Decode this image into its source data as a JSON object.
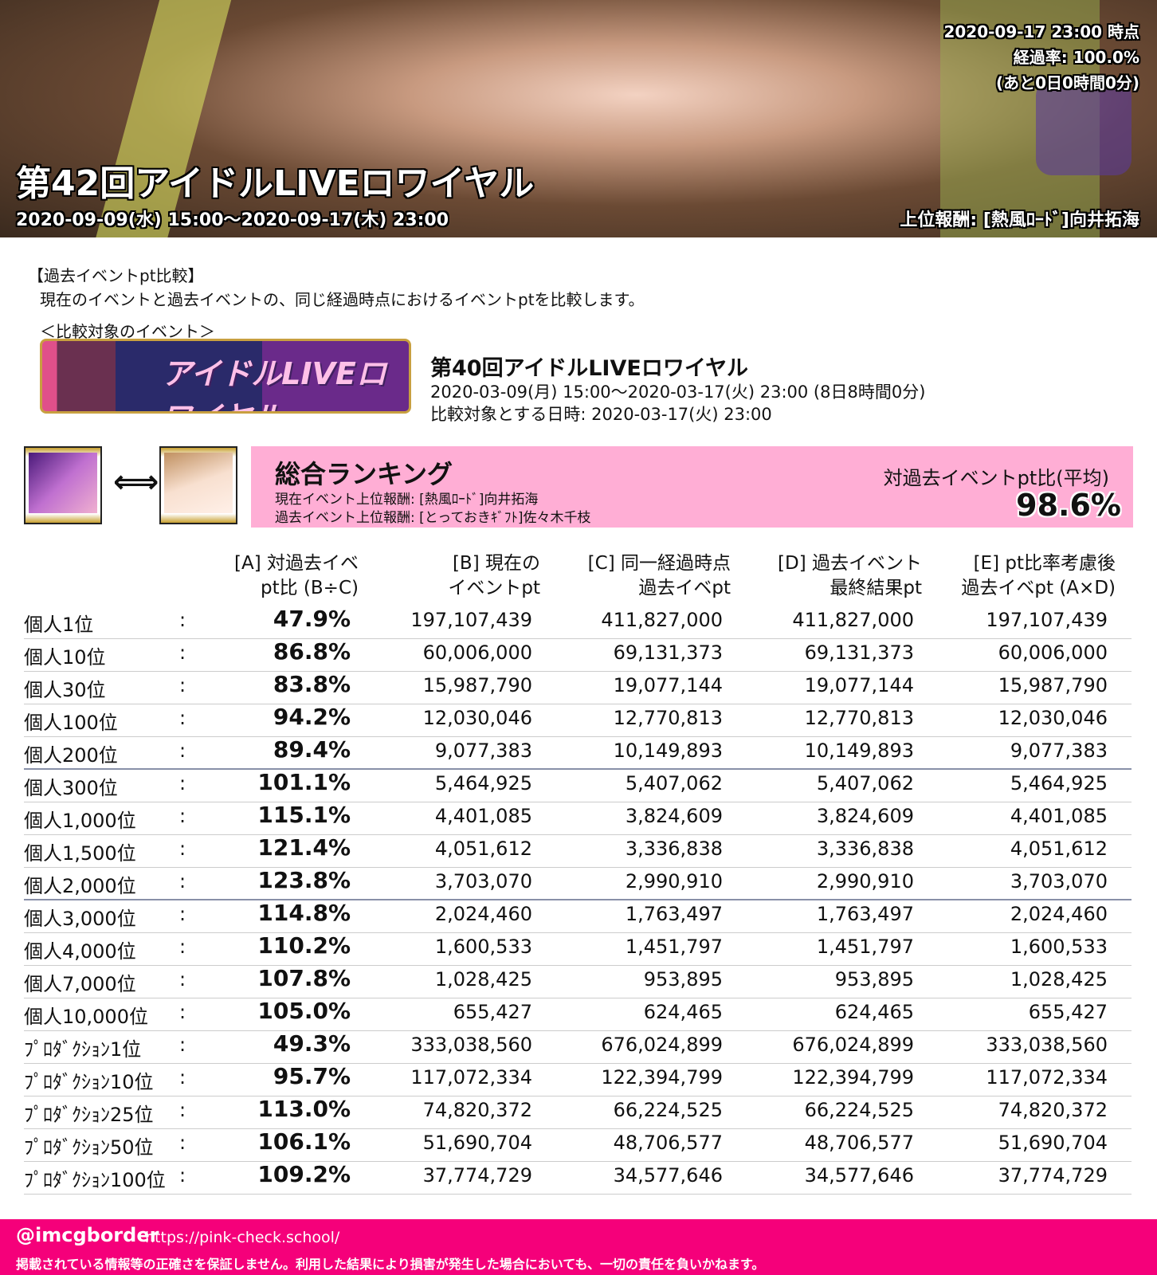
{
  "header": {
    "title": "第42回アイドルLIVEロワイヤル",
    "period": "2020-09-09(水) 15:00～2020-09-17(木) 23:00",
    "reward": "上位報酬: [熱風ﾛｰﾄﾞ]向井拓海",
    "timestamp": "2020-09-17 23:00 時点",
    "elapsed": "経過率: 100.0%",
    "remaining": "(あと0日0時間0分)"
  },
  "intro": {
    "section": "【過去イベントpt比較】",
    "description": "現在のイベントと過去イベントの、同じ経過時点におけるイベントptを比較します。",
    "target_label": "＜比較対象のイベント＞",
    "banner_text": "アイドルLIVEロワイヤル"
  },
  "past_event": {
    "name": "第40回アイドルLIVEロワイヤル",
    "period": "2020-03-09(月) 15:00～2020-03-17(火) 23:00 (8日8時間0分)",
    "compare_at": "比較対象とする日時: 2020-03-17(火) 23:00"
  },
  "summary": {
    "arrow": "⟺",
    "title": "総合ランキング",
    "current_reward": "現在イベント上位報酬: [熱風ﾛｰﾄﾞ]向井拓海",
    "past_reward": "過去イベント上位報酬: [とっておきｷﾞﾌﾄ]佐々木千枝",
    "ratio_label": "対過去イベントpt比(平均)",
    "ratio": "98.6%",
    "accent": "#ffaed5"
  },
  "table": {
    "headers": [
      "[A] 対過去イベ\npt比 (B÷C)",
      "[B] 現在の\nイベントpt",
      "[C] 同一経過時点\n過去イベpt",
      "[D] 過去イベント\n最終結果pt",
      "[E] pt比率考慮後\n過去イベpt (A×D)"
    ],
    "rows": [
      [
        "個人1位",
        "47.9%",
        "197,107,439",
        "411,827,000",
        "411,827,000",
        "197,107,439"
      ],
      [
        "個人10位",
        "86.8%",
        "60,006,000",
        "69,131,373",
        "69,131,373",
        "60,006,000"
      ],
      [
        "個人30位",
        "83.8%",
        "15,987,790",
        "19,077,144",
        "19,077,144",
        "15,987,790"
      ],
      [
        "個人100位",
        "94.2%",
        "12,030,046",
        "12,770,813",
        "12,770,813",
        "12,030,046"
      ],
      [
        "個人200位",
        "89.4%",
        "9,077,383",
        "10,149,893",
        "10,149,893",
        "9,077,383"
      ],
      [
        "個人300位",
        "101.1%",
        "5,464,925",
        "5,407,062",
        "5,407,062",
        "5,464,925"
      ],
      [
        "個人1,000位",
        "115.1%",
        "4,401,085",
        "3,824,609",
        "3,824,609",
        "4,401,085"
      ],
      [
        "個人1,500位",
        "121.4%",
        "4,051,612",
        "3,336,838",
        "3,336,838",
        "4,051,612"
      ],
      [
        "個人2,000位",
        "123.8%",
        "3,703,070",
        "2,990,910",
        "2,990,910",
        "3,703,070"
      ],
      [
        "個人3,000位",
        "114.8%",
        "2,024,460",
        "1,763,497",
        "1,763,497",
        "2,024,460"
      ],
      [
        "個人4,000位",
        "110.2%",
        "1,600,533",
        "1,451,797",
        "1,451,797",
        "1,600,533"
      ],
      [
        "個人7,000位",
        "107.8%",
        "1,028,425",
        "953,895",
        "953,895",
        "1,028,425"
      ],
      [
        "個人10,000位",
        "105.0%",
        "655,427",
        "624,465",
        "624,465",
        "655,427"
      ],
      [
        "ﾌﾟﾛﾀﾞｸｼｮﾝ1位",
        "49.3%",
        "333,038,560",
        "676,024,899",
        "676,024,899",
        "333,038,560"
      ],
      [
        "ﾌﾟﾛﾀﾞｸｼｮﾝ10位",
        "95.7%",
        "117,072,334",
        "122,394,799",
        "122,394,799",
        "117,072,334"
      ],
      [
        "ﾌﾟﾛﾀﾞｸｼｮﾝ25位",
        "113.0%",
        "74,820,372",
        "66,224,525",
        "66,224,525",
        "74,820,372"
      ],
      [
        "ﾌﾟﾛﾀﾞｸｼｮﾝ50位",
        "106.1%",
        "51,690,704",
        "48,706,577",
        "48,706,577",
        "51,690,704"
      ],
      [
        "ﾌﾟﾛﾀﾞｸｼｮﾝ100位",
        "109.2%",
        "37,774,729",
        "34,577,646",
        "34,577,646",
        "37,774,729"
      ]
    ],
    "colon": ":"
  },
  "footer": {
    "handle": "@imcgborder",
    "url": "https://pink-check.school/",
    "disclaimer": "掲載されている情報等の正確さを保証しません。利用した結果により損害が発生した場合においても、一切の責任を負いかねます。",
    "color": "#f5007a"
  }
}
